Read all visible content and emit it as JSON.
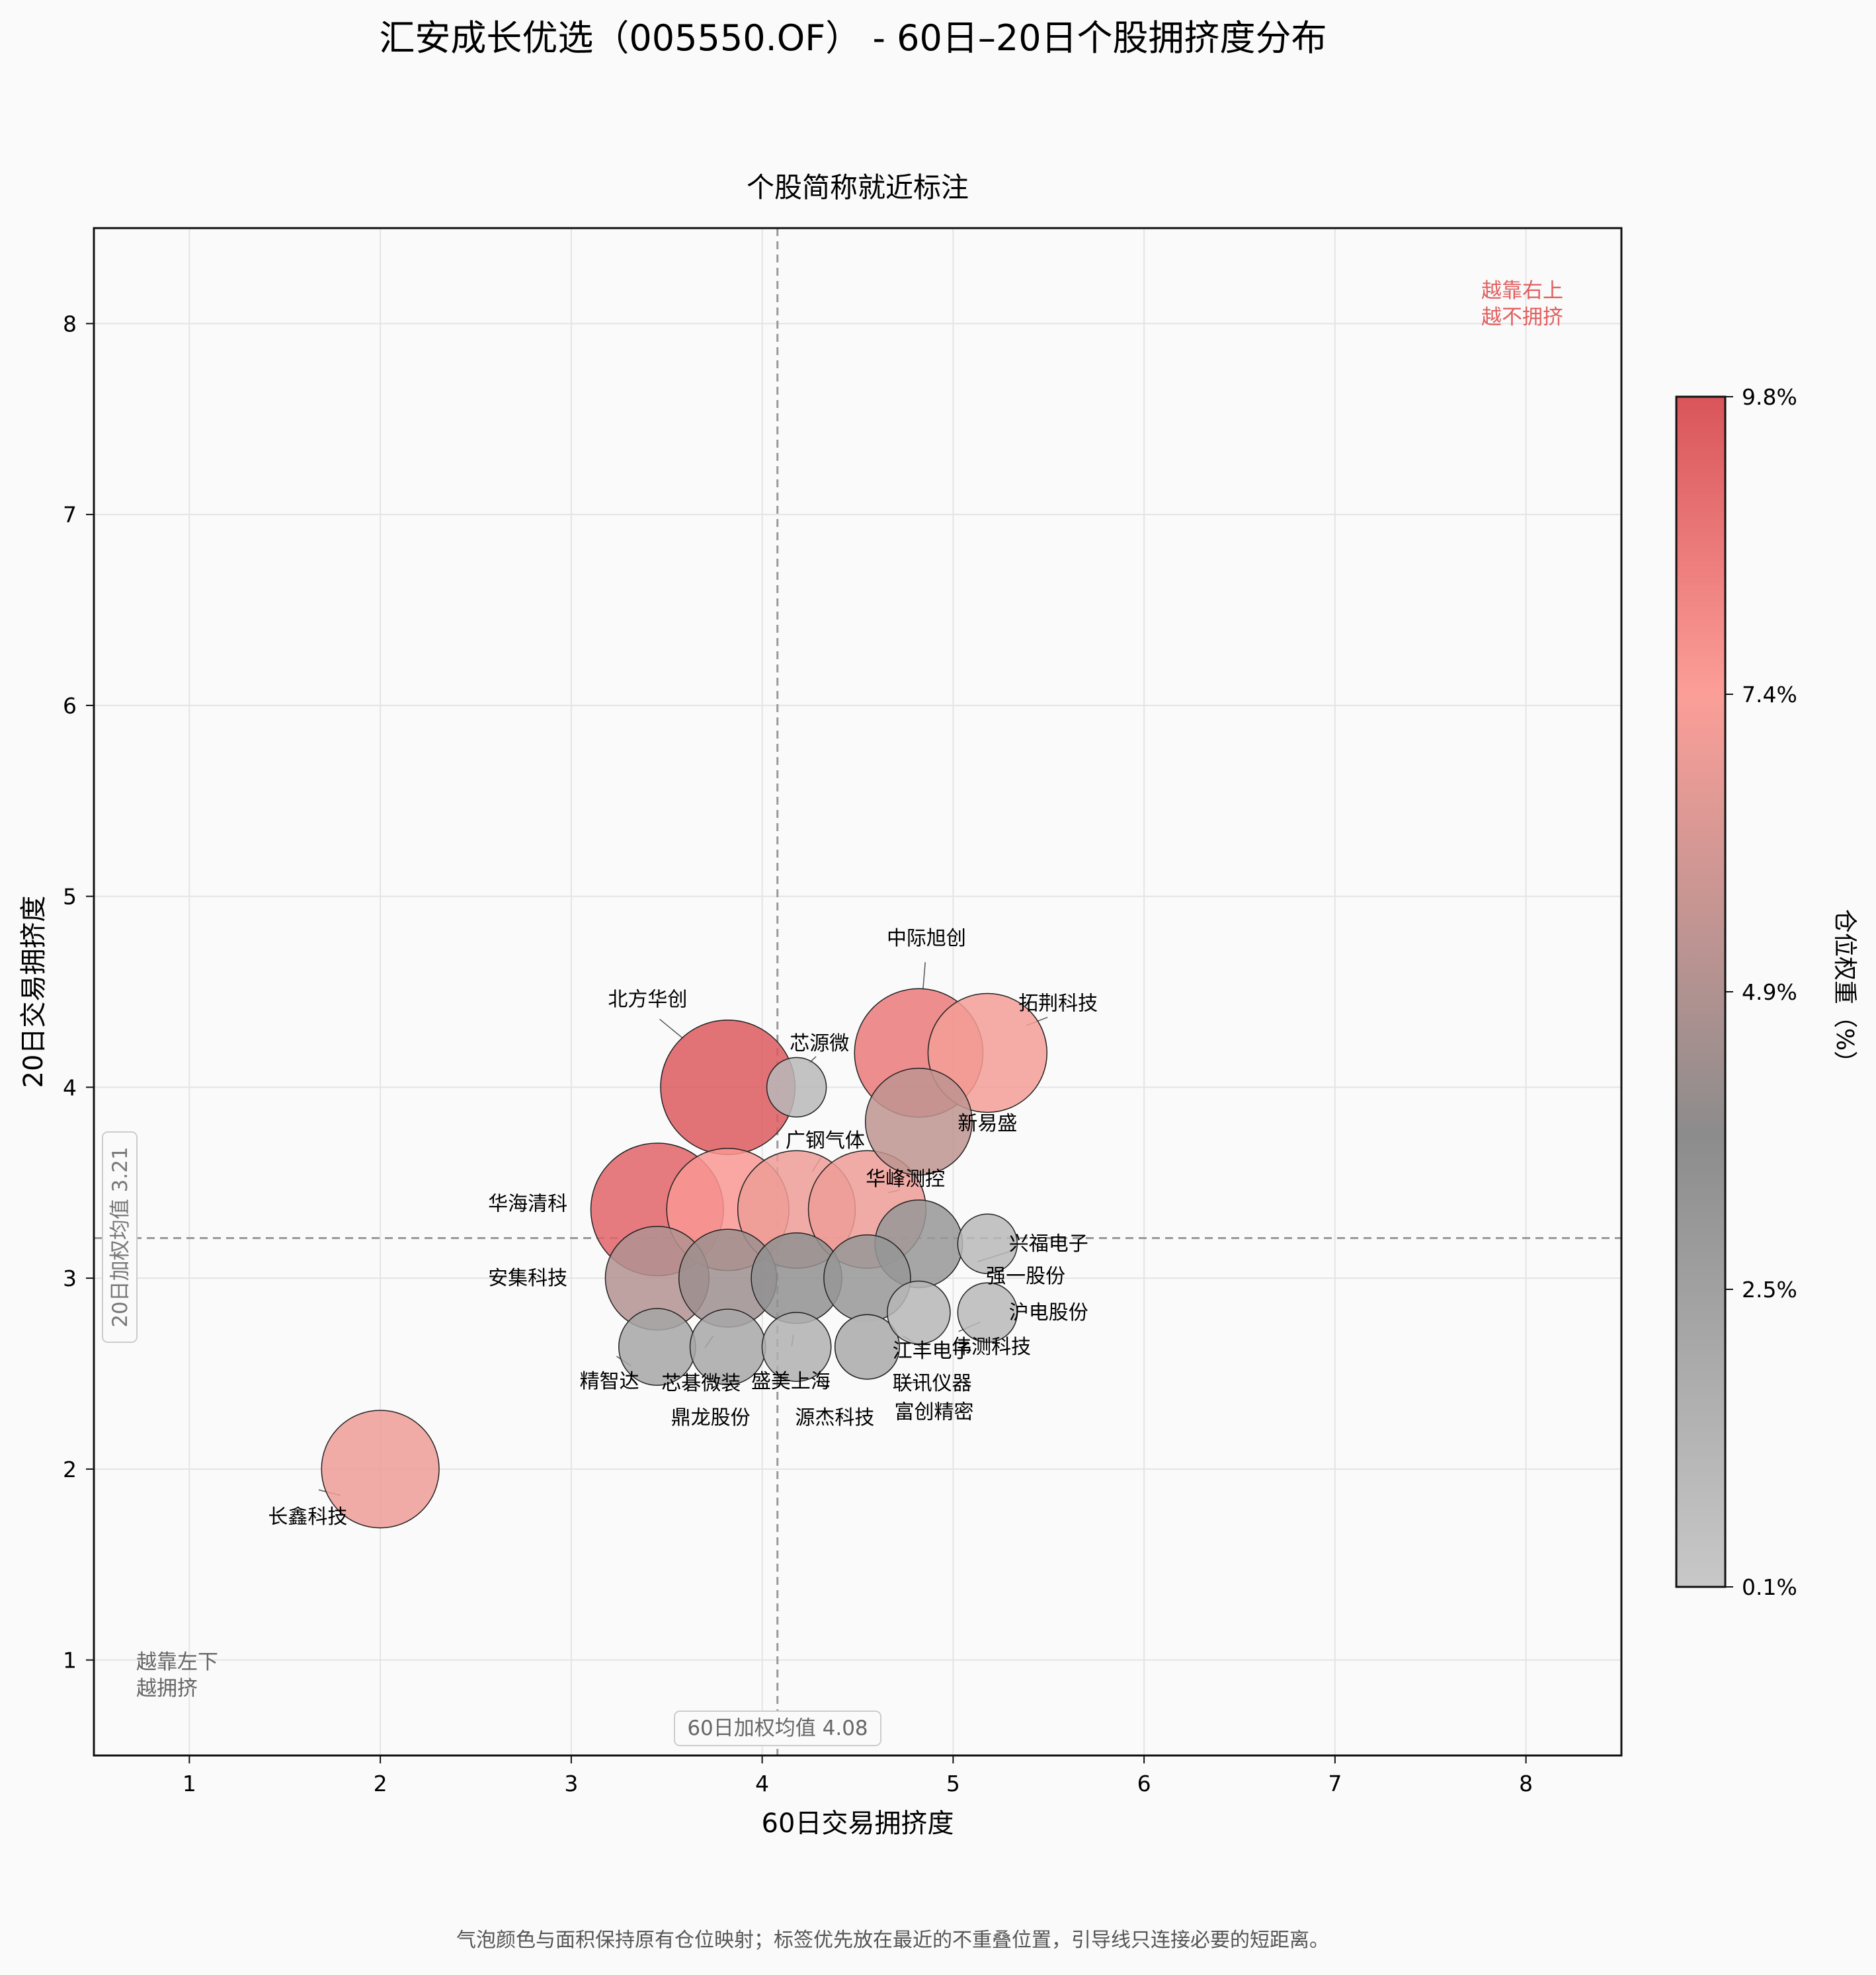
{
  "title": "汇安成长优选（005550.OF） - 60日–20日个股拥挤度分布",
  "subtitle": "个股简称就近标注",
  "footer": "气泡颜色与面积保持原有仓位映射；标签优先放在最近的不重叠位置，引导线只连接必要的短距离。",
  "corner_notes": {
    "top_right": [
      "越靠右上",
      "越不拥挤"
    ],
    "bottom_left": [
      "越靠左下",
      "越拥挤"
    ]
  },
  "reference_lines": {
    "x_mean_label": "60日加权均值 4.08",
    "x_mean": 4.08,
    "y_mean_label": "20日加权均值 3.21",
    "y_mean": 3.21
  },
  "colorbar": {
    "label": "仓位权重（%）",
    "tick_labels": [
      "0.1%",
      "2.5%",
      "4.9%",
      "7.4%",
      "9.8%"
    ],
    "min": 0.1,
    "max": 9.8,
    "colors": [
      "#c8c8c8",
      "#8c8c8c",
      "#fc9e98",
      "#d9555a"
    ]
  },
  "chart_data": {
    "type": "scatter",
    "title": "汇安成长优选（005550.OF） - 60日–20日个股拥挤度分布",
    "subtitle": "个股简称就近标注",
    "xlabel": "60日交易拥挤度",
    "ylabel": "20日交易拥挤度",
    "xlim": [
      0.5,
      8.5
    ],
    "ylim": [
      0.5,
      8.5
    ],
    "xticks": [
      1,
      2,
      3,
      4,
      5,
      6,
      7,
      8
    ],
    "yticks": [
      1,
      2,
      3,
      4,
      5,
      6,
      7,
      8
    ],
    "grid": true,
    "size_encoding": "仓位权重（%）",
    "color_encoding": "仓位权重（%）",
    "points": [
      {
        "name": "北方华创",
        "x": 3.82,
        "y": 4.0,
        "weight": 9.6
      },
      {
        "name": "华海清科",
        "x": 3.45,
        "y": 3.36,
        "weight": 9.3
      },
      {
        "name": "中际旭创",
        "x": 4.82,
        "y": 4.18,
        "weight": 8.6
      },
      {
        "name": "拓荆科技",
        "x": 5.18,
        "y": 4.18,
        "weight": 7.1
      },
      {
        "name": "新易盛",
        "x": 4.82,
        "y": 3.82,
        "weight": 5.4
      },
      {
        "name": "芯源微",
        "x": 4.18,
        "y": 4.0,
        "weight": 1.0
      },
      {
        "name": "广钢气体",
        "x": 4.18,
        "y": 3.36,
        "weight": 6.9
      },
      {
        "name": "华峰测控",
        "x": 4.55,
        "y": 3.36,
        "weight": 6.9
      },
      {
        "name": "华海清科_2",
        "label": "",
        "x": 3.82,
        "y": 3.36,
        "weight": 7.6
      },
      {
        "name": "安集科技",
        "x": 3.45,
        "y": 3.0,
        "weight": 5.0
      },
      {
        "name": "芯碁微装",
        "x": 3.82,
        "y": 3.0,
        "weight": 4.3
      },
      {
        "name": "盛美上海",
        "x": 4.18,
        "y": 3.0,
        "weight": 3.5
      },
      {
        "name": "联讯仪器",
        "x": 4.55,
        "y": 3.0,
        "weight": 3.1
      },
      {
        "name": "兴福电子",
        "x": 5.18,
        "y": 3.18,
        "weight": 1.0
      },
      {
        "name": "强一股份",
        "x": 4.82,
        "y": 3.18,
        "weight": 3.2
      },
      {
        "name": "沪电股份",
        "x": 5.18,
        "y": 2.82,
        "weight": 1.0
      },
      {
        "name": "伟测科技",
        "x": 4.82,
        "y": 2.82,
        "weight": 1.2
      },
      {
        "name": "精智达",
        "x": 3.45,
        "y": 2.64,
        "weight": 2.2
      },
      {
        "name": "鼎龙股份",
        "x": 3.82,
        "y": 2.64,
        "weight": 2.1
      },
      {
        "name": "源杰科技",
        "x": 4.18,
        "y": 2.64,
        "weight": 1.6
      },
      {
        "name": "江丰电子",
        "x": 4.55,
        "y": 2.64,
        "weight": 1.3
      },
      {
        "name": "富创精密",
        "x": 4.55,
        "y": 2.64,
        "weight": 1.3
      },
      {
        "name": "长鑫科技",
        "x": 2.0,
        "y": 2.0,
        "weight": 6.9
      }
    ]
  }
}
